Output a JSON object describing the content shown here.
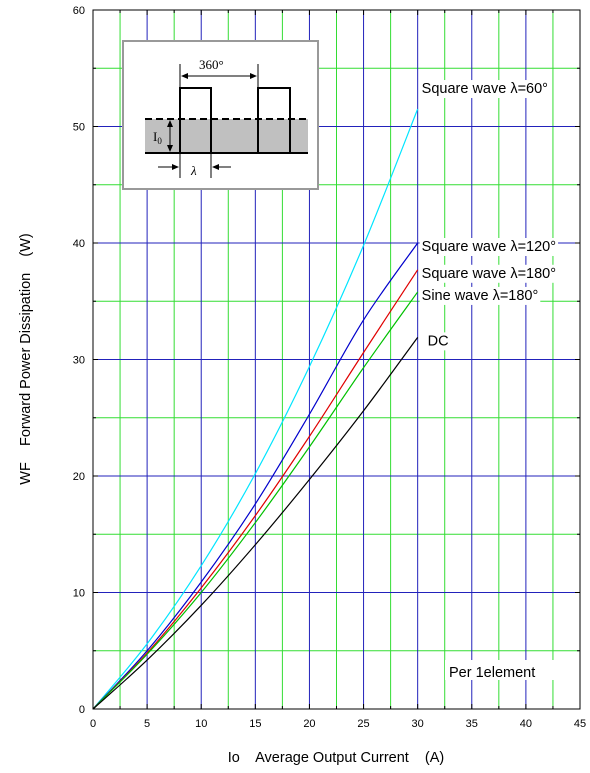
{
  "chart_data": {
    "type": "line",
    "xlabel": "Io    Average Output Current    (A)",
    "ylabel": "WF    Forward Power Dissipation    (W)",
    "xlim": [
      0,
      45
    ],
    "ylim": [
      0,
      60
    ],
    "x_ticks": [
      "0",
      "5",
      "10",
      "15",
      "20",
      "25",
      "30",
      "35",
      "40",
      "45"
    ],
    "y_ticks": [
      "0",
      "10",
      "20",
      "30",
      "40",
      "50",
      "60"
    ],
    "grid": true,
    "annotation": "Per 1element",
    "inset": {
      "period_label": "360°",
      "current_label": "I",
      "current_subscript": "0",
      "angle_label": "λ"
    },
    "x": [
      0,
      5,
      10,
      15,
      20,
      25,
      30
    ],
    "series": [
      {
        "name": "Square wave λ=60°",
        "color": "#00e5ff",
        "values": [
          0,
          5.6,
          12.3,
          20.2,
          29.4,
          39.8,
          51.5
        ]
      },
      {
        "name": "Square wave λ=120°",
        "color": "#0000cc",
        "values": [
          0,
          5.0,
          10.9,
          17.6,
          25.3,
          33.4,
          40.0
        ]
      },
      {
        "name": "Square wave λ=180°",
        "color": "#e00000",
        "values": [
          0,
          4.8,
          10.4,
          16.6,
          23.4,
          30.6,
          37.7
        ]
      },
      {
        "name": "Sine wave λ=180°",
        "color": "#00c000",
        "values": [
          0,
          4.7,
          10.0,
          16.0,
          22.5,
          29.3,
          35.8
        ]
      },
      {
        "name": "DC",
        "color": "#000000",
        "values": [
          0,
          4.2,
          8.9,
          14.1,
          19.7,
          25.6,
          31.9
        ]
      }
    ]
  }
}
